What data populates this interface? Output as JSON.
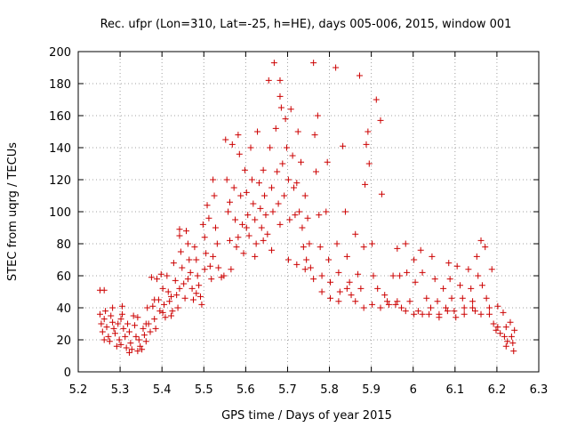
{
  "chart_data": {
    "type": "scatter",
    "title": "Rec. ufpr (Lon=310, Lat=-25, h=HE), days 005-006, 2015, window 001",
    "xlabel": "GPS time / Days of year 2015",
    "ylabel": "STEC from uqrg / TECUs",
    "xlim": [
      5.2,
      6.3
    ],
    "ylim": [
      0,
      200
    ],
    "xticks": [
      "5.2",
      "5.3",
      "5.4",
      "5.5",
      "5.6",
      "5.7",
      "5.8",
      "5.9",
      "6",
      "6.1",
      "6.2",
      "6.3"
    ],
    "yticks": [
      "0",
      "20",
      "40",
      "60",
      "80",
      "100",
      "120",
      "140",
      "160",
      "180",
      "200"
    ],
    "grid": true,
    "marker": "+",
    "color": "#cc0000",
    "series": [
      {
        "name": "STEC",
        "points": [
          [
            5.252,
            51
          ],
          [
            5.262,
            51
          ],
          [
            5.252,
            36
          ],
          [
            5.255,
            30
          ],
          [
            5.258,
            25
          ],
          [
            5.262,
            33
          ],
          [
            5.265,
            38
          ],
          [
            5.268,
            28
          ],
          [
            5.272,
            22
          ],
          [
            5.275,
            19
          ],
          [
            5.278,
            35
          ],
          [
            5.282,
            31
          ],
          [
            5.285,
            27
          ],
          [
            5.288,
            24
          ],
          [
            5.292,
            16
          ],
          [
            5.295,
            30
          ],
          [
            5.298,
            20
          ],
          [
            5.302,
            17
          ],
          [
            5.305,
            41
          ],
          [
            5.305,
            36
          ],
          [
            5.308,
            27
          ],
          [
            5.312,
            22
          ],
          [
            5.315,
            15
          ],
          [
            5.318,
            30
          ],
          [
            5.322,
            25
          ],
          [
            5.325,
            18
          ],
          [
            5.328,
            14
          ],
          [
            5.332,
            35
          ],
          [
            5.335,
            29
          ],
          [
            5.338,
            22
          ],
          [
            5.342,
            13
          ],
          [
            5.345,
            20
          ],
          [
            5.348,
            16
          ],
          [
            5.352,
            14
          ],
          [
            5.355,
            27
          ],
          [
            5.358,
            23
          ],
          [
            5.362,
            19
          ],
          [
            5.365,
            40
          ],
          [
            5.368,
            30
          ],
          [
            5.372,
            25
          ],
          [
            5.375,
            59
          ],
          [
            5.378,
            41
          ],
          [
            5.382,
            33
          ],
          [
            5.385,
            27
          ],
          [
            5.388,
            58
          ],
          [
            5.392,
            45
          ],
          [
            5.395,
            38
          ],
          [
            5.398,
            61
          ],
          [
            5.402,
            52
          ],
          [
            5.405,
            42
          ],
          [
            5.408,
            34
          ],
          [
            5.412,
            60
          ],
          [
            5.415,
            50
          ],
          [
            5.418,
            44
          ],
          [
            5.422,
            35
          ],
          [
            5.425,
            38
          ],
          [
            5.428,
            68
          ],
          [
            5.432,
            57
          ],
          [
            5.435,
            48
          ],
          [
            5.438,
            40
          ],
          [
            5.442,
            89
          ],
          [
            5.442,
            85
          ],
          [
            5.445,
            75
          ],
          [
            5.448,
            65
          ],
          [
            5.452,
            55
          ],
          [
            5.455,
            46
          ],
          [
            5.458,
            88
          ],
          [
            5.462,
            80
          ],
          [
            5.465,
            70
          ],
          [
            5.468,
            62
          ],
          [
            5.472,
            52
          ],
          [
            5.475,
            45
          ],
          [
            5.478,
            78
          ],
          [
            5.482,
            70
          ],
          [
            5.485,
            60
          ],
          [
            5.488,
            54
          ],
          [
            5.492,
            47
          ],
          [
            5.495,
            42
          ],
          [
            5.498,
            92
          ],
          [
            5.502,
            84
          ],
          [
            5.505,
            74
          ],
          [
            5.508,
            104
          ],
          [
            5.512,
            96
          ],
          [
            5.515,
            66
          ],
          [
            5.518,
            58
          ],
          [
            5.522,
            120
          ],
          [
            5.525,
            110
          ],
          [
            5.528,
            90
          ],
          [
            5.532,
            80
          ],
          [
            5.535,
            65
          ],
          [
            5.548,
            60
          ],
          [
            5.552,
            145
          ],
          [
            5.555,
            120
          ],
          [
            5.558,
            100
          ],
          [
            5.562,
            82
          ],
          [
            5.565,
            64
          ],
          [
            5.568,
            142
          ],
          [
            5.572,
            115
          ],
          [
            5.575,
            95
          ],
          [
            5.578,
            78
          ],
          [
            5.582,
            148
          ],
          [
            5.585,
            136
          ],
          [
            5.588,
            110
          ],
          [
            5.592,
            92
          ],
          [
            5.595,
            74
          ],
          [
            5.598,
            126
          ],
          [
            5.602,
            112
          ],
          [
            5.605,
            98
          ],
          [
            5.608,
            85
          ],
          [
            5.612,
            140
          ],
          [
            5.615,
            120
          ],
          [
            5.618,
            105
          ],
          [
            5.622,
            95
          ],
          [
            5.625,
            80
          ],
          [
            5.628,
            150
          ],
          [
            5.632,
            118
          ],
          [
            5.635,
            102
          ],
          [
            5.638,
            90
          ],
          [
            5.642,
            126
          ],
          [
            5.645,
            110
          ],
          [
            5.648,
            98
          ],
          [
            5.652,
            86
          ],
          [
            5.655,
            182
          ],
          [
            5.658,
            140
          ],
          [
            5.662,
            115
          ],
          [
            5.665,
            100
          ],
          [
            5.668,
            193
          ],
          [
            5.672,
            152
          ],
          [
            5.675,
            125
          ],
          [
            5.678,
            105
          ],
          [
            5.682,
            182
          ],
          [
            5.682,
            172
          ],
          [
            5.685,
            165
          ],
          [
            5.688,
            130
          ],
          [
            5.692,
            110
          ],
          [
            5.695,
            158
          ],
          [
            5.698,
            140
          ],
          [
            5.702,
            120
          ],
          [
            5.705,
            95
          ],
          [
            5.708,
            164
          ],
          [
            5.712,
            135
          ],
          [
            5.715,
            115
          ],
          [
            5.718,
            98
          ],
          [
            5.722,
            118
          ],
          [
            5.725,
            150
          ],
          [
            5.728,
            100
          ],
          [
            5.732,
            131
          ],
          [
            5.735,
            90
          ],
          [
            5.738,
            78
          ],
          [
            5.742,
            110
          ],
          [
            5.745,
            70
          ],
          [
            5.748,
            96
          ],
          [
            5.752,
            80
          ],
          [
            5.755,
            65
          ],
          [
            5.762,
            193
          ],
          [
            5.765,
            148
          ],
          [
            5.768,
            125
          ],
          [
            5.772,
            160
          ],
          [
            5.775,
            98
          ],
          [
            5.778,
            78
          ],
          [
            5.782,
            60
          ],
          [
            5.792,
            100
          ],
          [
            5.795,
            131
          ],
          [
            5.798,
            70
          ],
          [
            5.802,
            56
          ],
          [
            5.815,
            190
          ],
          [
            5.818,
            80
          ],
          [
            5.822,
            62
          ],
          [
            5.825,
            50
          ],
          [
            5.832,
            141
          ],
          [
            5.838,
            100
          ],
          [
            5.842,
            72
          ],
          [
            5.848,
            56
          ],
          [
            5.852,
            48
          ],
          [
            5.862,
            86
          ],
          [
            5.868,
            61
          ],
          [
            5.872,
            185
          ],
          [
            5.875,
            52
          ],
          [
            5.882,
            78
          ],
          [
            5.885,
            117
          ],
          [
            5.888,
            142
          ],
          [
            5.892,
            150
          ],
          [
            5.895,
            130
          ],
          [
            5.902,
            80
          ],
          [
            5.905,
            60
          ],
          [
            5.912,
            170
          ],
          [
            5.915,
            52
          ],
          [
            5.922,
            157
          ],
          [
            5.925,
            111
          ],
          [
            5.932,
            48
          ],
          [
            5.938,
            44
          ],
          [
            5.952,
            60
          ],
          [
            5.958,
            42
          ],
          [
            5.962,
            77
          ],
          [
            5.968,
            60
          ],
          [
            5.972,
            40
          ],
          [
            5.982,
            80
          ],
          [
            5.985,
            62
          ],
          [
            5.992,
            44
          ],
          [
            6.002,
            70
          ],
          [
            6.005,
            56
          ],
          [
            6.012,
            38
          ],
          [
            6.018,
            76
          ],
          [
            6.022,
            62
          ],
          [
            6.032,
            46
          ],
          [
            6.038,
            36
          ],
          [
            6.045,
            72
          ],
          [
            6.052,
            58
          ],
          [
            6.058,
            44
          ],
          [
            6.062,
            36
          ],
          [
            6.072,
            52
          ],
          [
            6.078,
            40
          ],
          [
            6.085,
            68
          ],
          [
            6.088,
            58
          ],
          [
            6.092,
            46
          ],
          [
            6.098,
            38
          ],
          [
            6.105,
            66
          ],
          [
            6.112,
            54
          ],
          [
            6.118,
            46
          ],
          [
            6.122,
            40
          ],
          [
            6.132,
            64
          ],
          [
            6.138,
            52
          ],
          [
            6.142,
            44
          ],
          [
            6.148,
            38
          ],
          [
            6.152,
            72
          ],
          [
            6.155,
            60
          ],
          [
            6.162,
            82
          ],
          [
            6.165,
            54
          ],
          [
            6.172,
            78
          ],
          [
            6.175,
            46
          ],
          [
            6.182,
            40
          ],
          [
            6.188,
            64
          ],
          [
            6.192,
            30
          ],
          [
            6.198,
            26
          ],
          [
            6.202,
            41
          ],
          [
            6.208,
            24
          ],
          [
            6.215,
            37
          ],
          [
            6.218,
            22
          ],
          [
            6.222,
            28
          ],
          [
            6.225,
            19
          ],
          [
            6.232,
            31
          ],
          [
            6.235,
            22
          ],
          [
            6.238,
            18
          ],
          [
            6.24,
            13
          ],
          [
            6.242,
            26
          ],
          [
            5.262,
            20
          ],
          [
            5.282,
            40
          ],
          [
            5.302,
            33
          ],
          [
            5.322,
            12
          ],
          [
            5.342,
            34
          ],
          [
            5.362,
            30
          ],
          [
            5.382,
            45
          ],
          [
            5.402,
            37
          ],
          [
            5.422,
            47
          ],
          [
            5.442,
            52
          ],
          [
            5.462,
            58
          ],
          [
            5.482,
            49
          ],
          [
            5.502,
            64
          ],
          [
            5.522,
            72
          ],
          [
            5.542,
            59
          ],
          [
            5.562,
            106
          ],
          [
            5.582,
            84
          ],
          [
            5.602,
            90
          ],
          [
            5.622,
            72
          ],
          [
            5.642,
            82
          ],
          [
            5.662,
            76
          ],
          [
            5.682,
            92
          ],
          [
            5.702,
            70
          ],
          [
            5.722,
            67
          ],
          [
            5.742,
            64
          ],
          [
            5.762,
            58
          ],
          [
            5.782,
            50
          ],
          [
            5.802,
            46
          ],
          [
            5.822,
            44
          ],
          [
            5.842,
            52
          ],
          [
            5.862,
            44
          ],
          [
            5.882,
            40
          ],
          [
            5.902,
            42
          ],
          [
            5.922,
            40
          ],
          [
            5.942,
            42
          ],
          [
            5.962,
            44
          ],
          [
            5.982,
            38
          ],
          [
            6.002,
            36
          ],
          [
            6.022,
            36
          ],
          [
            6.042,
            40
          ],
          [
            6.062,
            34
          ],
          [
            6.082,
            38
          ],
          [
            6.102,
            34
          ],
          [
            6.122,
            36
          ],
          [
            6.142,
            40
          ],
          [
            6.162,
            36
          ],
          [
            6.182,
            36
          ],
          [
            6.202,
            28
          ],
          [
            6.222,
            16
          ]
        ]
      }
    ]
  }
}
